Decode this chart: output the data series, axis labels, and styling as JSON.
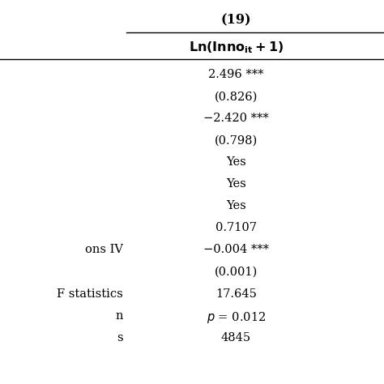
{
  "col_header_top": "(19)",
  "rows": [
    {
      "left": "",
      "right": "2.496 ***"
    },
    {
      "left": "",
      "right": "(0.826)"
    },
    {
      "left": "",
      "right": "−2.420 ***"
    },
    {
      "left": "",
      "right": "(0.798)"
    },
    {
      "left": "",
      "right": "Yes"
    },
    {
      "left": "",
      "right": "Yes"
    },
    {
      "left": "",
      "right": "Yes"
    },
    {
      "left": "",
      "right": "0.7107"
    },
    {
      "left": "ons IV",
      "right": "−0.004 ***"
    },
    {
      "left": "",
      "right": "(0.001)"
    },
    {
      "left": "F statistics",
      "right": "17.645"
    },
    {
      "left": "n",
      "right": "p = 0.012"
    },
    {
      "left": "s",
      "right": "4845"
    }
  ],
  "bg_color": "#ffffff",
  "text_color": "#000000",
  "font_size": 10.5,
  "header_font_size": 11.5,
  "fig_width": 4.74,
  "fig_height": 4.74,
  "dpi": 100
}
